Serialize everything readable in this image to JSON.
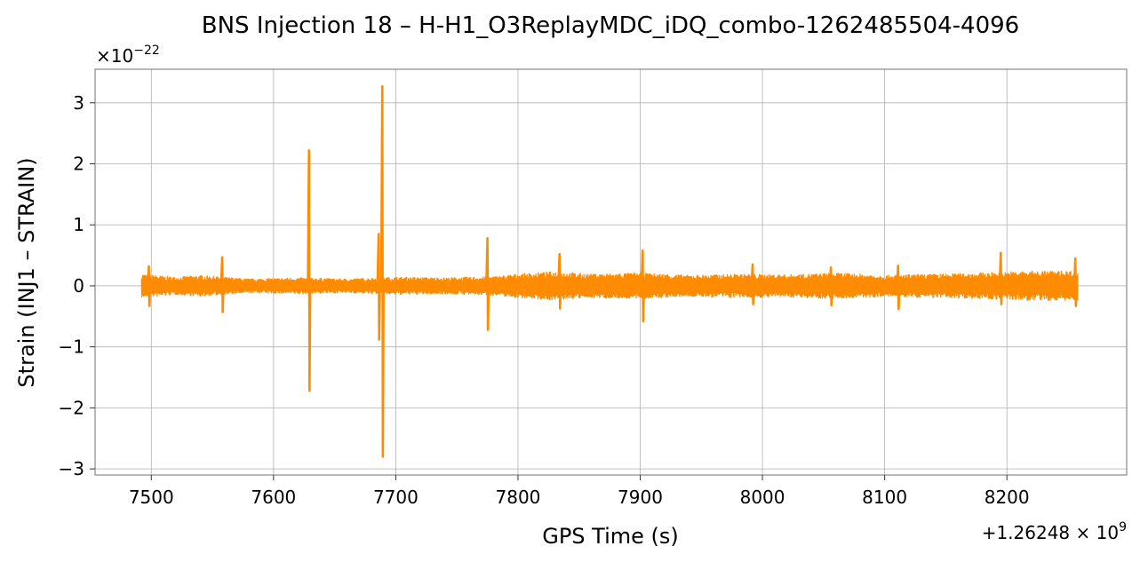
{
  "chart_data": {
    "type": "line",
    "title": "BNS Injection 18 – H-H1_O3ReplayMDC_iDQ_combo-1262485504-4096",
    "xlabel": "GPS Time (s)",
    "ylabel": "Strain (INJ1 – STRAIN)",
    "x_offset_text": "+1.26248 × 10",
    "x_offset_exp": "9",
    "y_scale_text": "×10",
    "y_scale_exp": "−22",
    "xlim": [
      7454,
      8298
    ],
    "ylim": [
      -3.1,
      3.55
    ],
    "x_ticks": [
      7500,
      7600,
      7700,
      7800,
      7900,
      8000,
      8100,
      8200
    ],
    "x_tick_labels": [
      "7500",
      "7600",
      "7700",
      "7800",
      "7900",
      "8000",
      "8100",
      "8200"
    ],
    "y_ticks": [
      -3,
      -2,
      -1,
      0,
      1,
      2,
      3
    ],
    "y_tick_labels": [
      "−3",
      "−2",
      "−1",
      "0",
      "1",
      "2",
      "3"
    ],
    "grid": true,
    "legend": "none",
    "line_color": "#ff8c00",
    "series": [
      {
        "x_start": 7492,
        "x_end": 8258,
        "baseline_envelope": [
          [
            7492,
            0.2
          ],
          [
            7520,
            0.15
          ],
          [
            7540,
            0.18
          ],
          [
            7580,
            0.12
          ],
          [
            7620,
            0.14
          ],
          [
            7660,
            0.12
          ],
          [
            7700,
            0.15
          ],
          [
            7740,
            0.14
          ],
          [
            7780,
            0.16
          ],
          [
            7800,
            0.2
          ],
          [
            7830,
            0.24
          ],
          [
            7860,
            0.2
          ],
          [
            7900,
            0.22
          ],
          [
            7940,
            0.18
          ],
          [
            7980,
            0.2
          ],
          [
            8020,
            0.19
          ],
          [
            8060,
            0.22
          ],
          [
            8100,
            0.18
          ],
          [
            8140,
            0.2
          ],
          [
            8180,
            0.22
          ],
          [
            8220,
            0.25
          ],
          [
            8258,
            0.25
          ]
        ],
        "spikes": [
          {
            "x": 7498,
            "max": 0.32,
            "min": -0.33
          },
          {
            "x": 7558,
            "max": 0.47,
            "min": -0.43
          },
          {
            "x": 7629,
            "max": 2.22,
            "min": -1.72
          },
          {
            "x": 7686,
            "max": 0.85,
            "min": -0.88
          },
          {
            "x": 7689,
            "max": 3.27,
            "min": -2.8
          },
          {
            "x": 7775,
            "max": 0.78,
            "min": -0.72
          },
          {
            "x": 7834,
            "max": 0.52,
            "min": -0.37
          },
          {
            "x": 7902,
            "max": 0.58,
            "min": -0.58
          },
          {
            "x": 7992,
            "max": 0.35,
            "min": -0.3
          },
          {
            "x": 8056,
            "max": 0.3,
            "min": -0.32
          },
          {
            "x": 8111,
            "max": 0.33,
            "min": -0.38
          },
          {
            "x": 8195,
            "max": 0.54,
            "min": -0.3
          },
          {
            "x": 8256,
            "max": 0.45,
            "min": -0.33
          }
        ]
      }
    ]
  }
}
